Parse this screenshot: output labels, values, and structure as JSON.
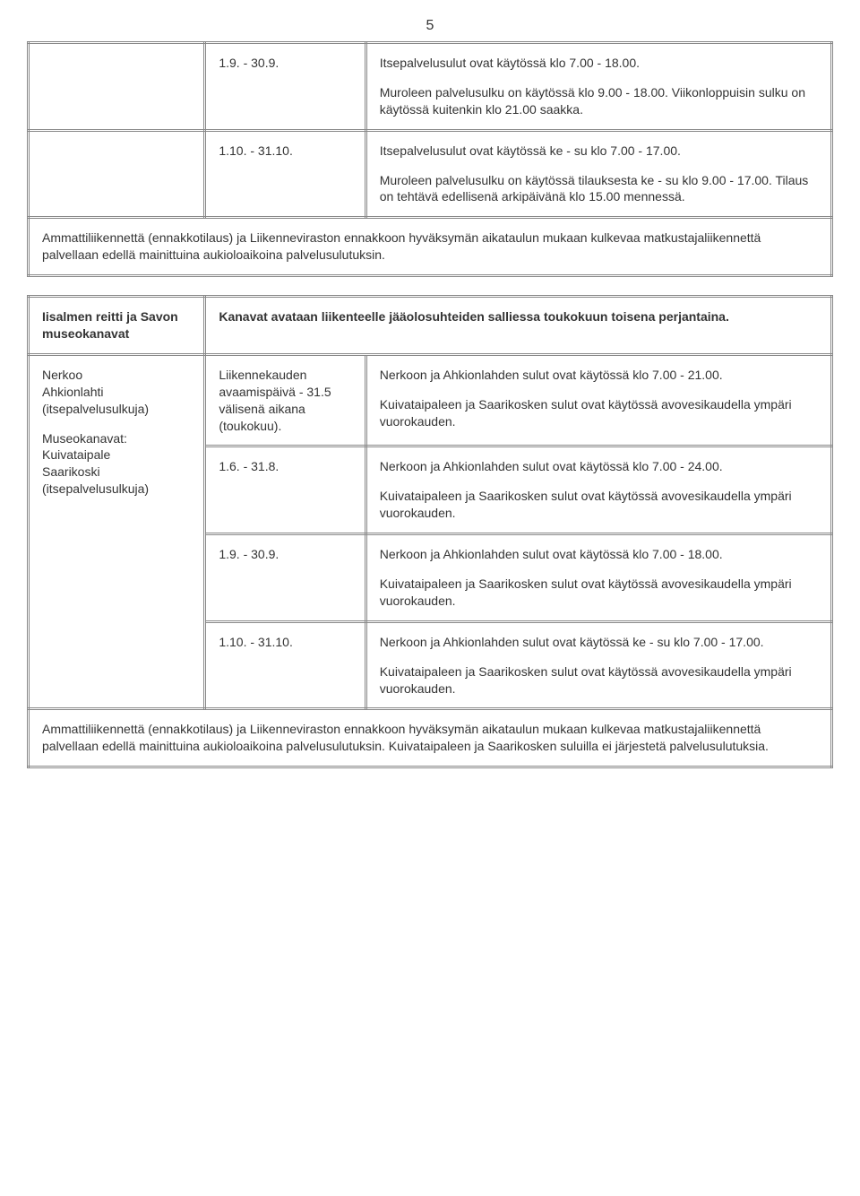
{
  "page_number": "5",
  "table1": {
    "rows": [
      {
        "date": "1.9. - 30.9.",
        "paras": [
          "Itsepalvelusulut ovat käytössä klo 7.00 - 18.00.",
          "Muroleen palvelusulku on käytössä klo 9.00 - 18.00. Viikonloppuisin sulku on käytössä kuitenkin klo 21.00 saakka."
        ]
      },
      {
        "date": "1.10. - 31.10.",
        "paras": [
          "Itsepalvelusulut ovat käytössä ke - su klo 7.00 - 17.00.",
          "Muroleen palvelusulku on käytössä tilauksesta ke - su klo 9.00 - 17.00. Tilaus on tehtävä edellisenä arkipäivänä klo 15.00 mennessä."
        ]
      }
    ],
    "footer": "Ammattiliikennettä (ennakkotilaus) ja Liikenneviraston ennakkoon hyväksymän aikataulun mukaan kulkevaa matkustajaliikennettä palvellaan edellä mainittuina aukioloaikoina palvelusulutuksin."
  },
  "table2": {
    "side_header": "Iisalmen reitti ja Savon museokanavat",
    "side_paras": [
      "Nerkoo",
      "Ahkionlahti",
      "(itsepalvelusulkuja)",
      "",
      "Museokanavat:",
      "Kuivataipale",
      "Saarikoski",
      "(itsepalvelusulkuja)"
    ],
    "top_right": "Kanavat avataan liikenteelle jääolosuhteiden salliessa toukokuun toisena perjantaina.",
    "rows": [
      {
        "date_paras": [
          "Liikennekauden avaamispäivä - 31.5 välisenä aikana (toukokuu)."
        ],
        "desc_paras": [
          "Nerkoon ja Ahkionlahden sulut ovat käytössä klo 7.00 - 21.00.",
          "Kuivataipaleen ja Saarikosken sulut ovat käytössä avovesikaudella ympäri vuorokauden."
        ]
      },
      {
        "date_paras": [
          "1.6. - 31.8."
        ],
        "desc_paras": [
          "Nerkoon ja Ahkionlahden sulut ovat käytössä klo 7.00 - 24.00.",
          "Kuivataipaleen ja Saarikosken sulut ovat käytössä avovesikaudella ympäri vuorokauden."
        ]
      },
      {
        "date_paras": [
          "1.9. - 30.9."
        ],
        "desc_paras": [
          "Nerkoon ja Ahkionlahden sulut ovat käytössä klo 7.00 - 18.00.",
          "Kuivataipaleen ja Saarikosken sulut ovat käytössä avovesikaudella ympäri vuorokauden."
        ]
      },
      {
        "date_paras": [
          "1.10. - 31.10."
        ],
        "desc_paras": [
          "Nerkoon ja Ahkionlahden sulut ovat käytössä ke - su klo 7.00 - 17.00.",
          "Kuivataipaleen ja Saarikosken sulut ovat käytössä avovesikaudella ympäri vuorokauden."
        ]
      }
    ],
    "footer": "Ammattiliikennettä (ennakkotilaus) ja Liikenneviraston ennakkoon hyväksymän aikataulun mukaan kulkevaa matkustajaliikennettä palvellaan edellä mainittuina aukioloaikoina palvelusulutuksin. Kuivataipaleen ja Saarikosken suluilla ei järjestetä palvelusulutuksia."
  }
}
